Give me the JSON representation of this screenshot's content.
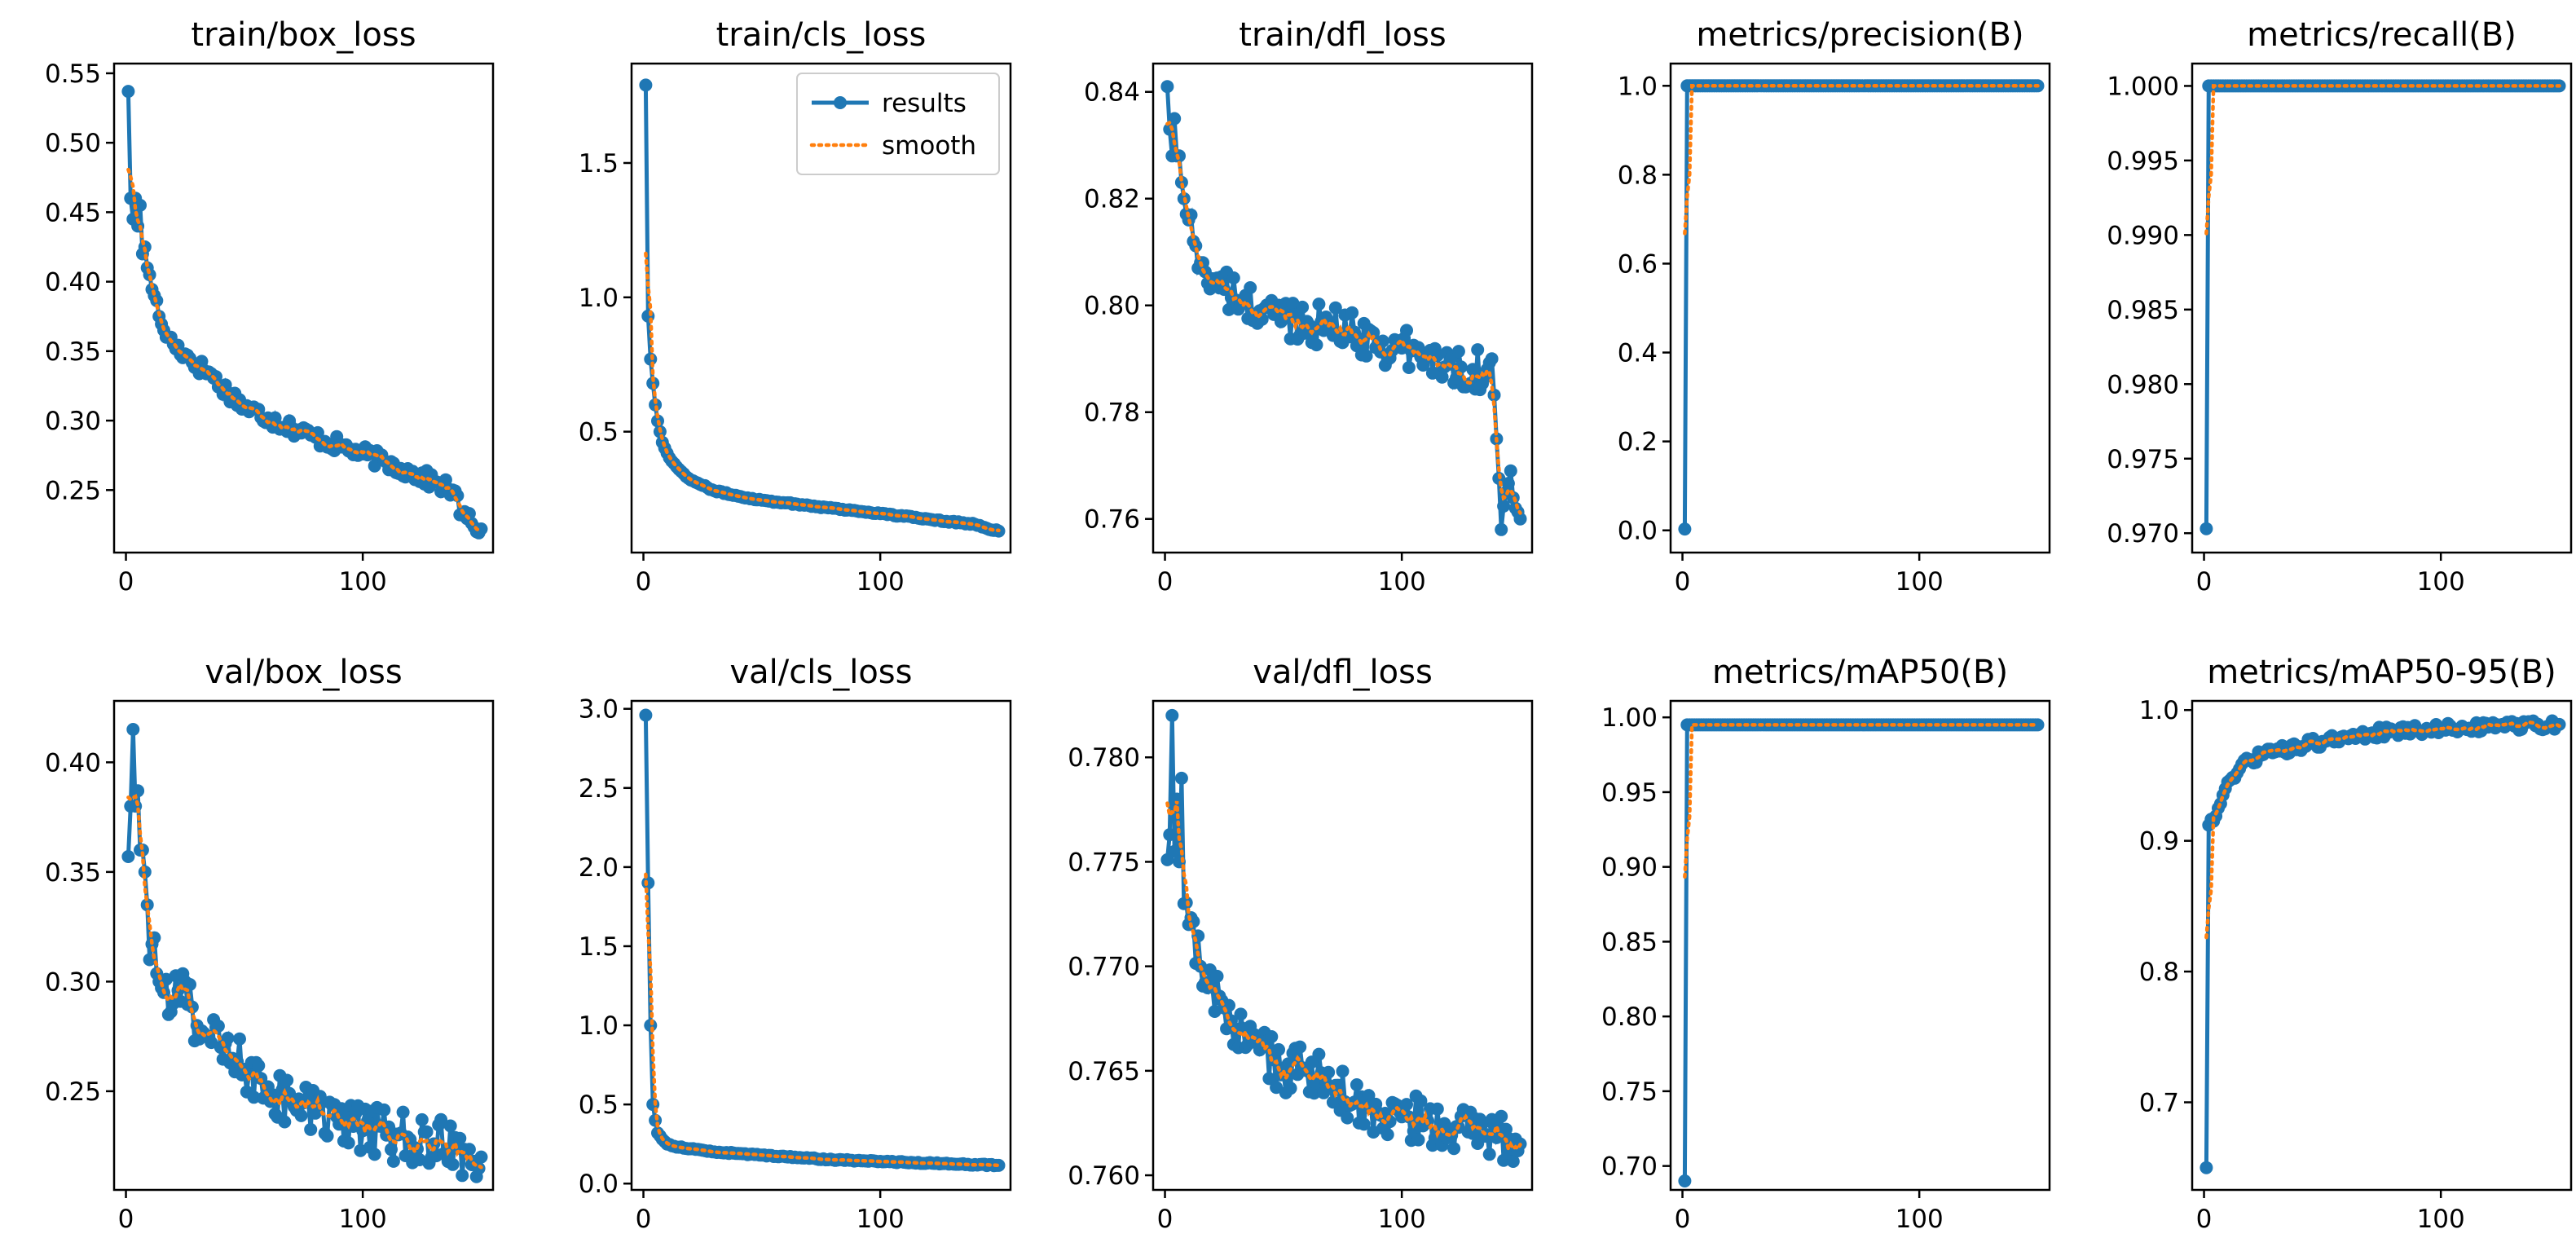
{
  "colors": {
    "results": "#1f77b4",
    "smooth": "#ff7f0e",
    "axes": "#000000",
    "background": "#ffffff"
  },
  "legend": {
    "results": "results",
    "smooth": "smooth",
    "location": "upper-right",
    "panel": "train/cls_loss"
  },
  "chart_data": [
    {
      "type": "line",
      "title": "train/box_loss",
      "xlim": [
        -5,
        155
      ],
      "ylim": [
        0.205,
        0.557
      ],
      "xticks": [
        0,
        100
      ],
      "xtick_labels": [
        "0",
        "100"
      ],
      "yticks": [
        0.25,
        0.3,
        0.35,
        0.4,
        0.45,
        0.5,
        0.55
      ],
      "ytick_labels": [
        "0.25",
        "0.30",
        "0.35",
        "0.40",
        "0.45",
        "0.50",
        "0.55"
      ],
      "anchors": [
        [
          1,
          0.537
        ],
        [
          2,
          0.46
        ],
        [
          3,
          0.445
        ],
        [
          4,
          0.46
        ],
        [
          5,
          0.44
        ],
        [
          6,
          0.455
        ],
        [
          7,
          0.42
        ],
        [
          8,
          0.425
        ],
        [
          9,
          0.41
        ],
        [
          10,
          0.405
        ],
        [
          12,
          0.39
        ],
        [
          14,
          0.375
        ],
        [
          16,
          0.365
        ],
        [
          18,
          0.36
        ],
        [
          20,
          0.355
        ],
        [
          25,
          0.348
        ],
        [
          30,
          0.34
        ],
        [
          35,
          0.335
        ],
        [
          40,
          0.325
        ],
        [
          45,
          0.318
        ],
        [
          50,
          0.31
        ],
        [
          60,
          0.302
        ],
        [
          70,
          0.295
        ],
        [
          80,
          0.288
        ],
        [
          90,
          0.282
        ],
        [
          100,
          0.276
        ],
        [
          110,
          0.27
        ],
        [
          120,
          0.263
        ],
        [
          130,
          0.256
        ],
        [
          138,
          0.25
        ],
        [
          142,
          0.232
        ],
        [
          146,
          0.226
        ],
        [
          150,
          0.222
        ]
      ],
      "noise": 0.006
    },
    {
      "type": "line",
      "title": "train/cls_loss",
      "xlim": [
        -5,
        155
      ],
      "ylim": [
        0.05,
        1.87
      ],
      "xticks": [
        0,
        100
      ],
      "xtick_labels": [
        "0",
        "100"
      ],
      "yticks": [
        0.5,
        1.0,
        1.5
      ],
      "ytick_labels": [
        "0.5",
        "1.0",
        "1.5"
      ],
      "anchors": [
        [
          1,
          1.79
        ],
        [
          2,
          0.93
        ],
        [
          3,
          0.77
        ],
        [
          4,
          0.68
        ],
        [
          5,
          0.6
        ],
        [
          6,
          0.54
        ],
        [
          7,
          0.5
        ],
        [
          8,
          0.46
        ],
        [
          10,
          0.42
        ],
        [
          12,
          0.39
        ],
        [
          15,
          0.36
        ],
        [
          20,
          0.32
        ],
        [
          25,
          0.3
        ],
        [
          30,
          0.28
        ],
        [
          40,
          0.26
        ],
        [
          50,
          0.245
        ],
        [
          60,
          0.235
        ],
        [
          70,
          0.225
        ],
        [
          80,
          0.215
        ],
        [
          90,
          0.205
        ],
        [
          100,
          0.195
        ],
        [
          110,
          0.185
        ],
        [
          120,
          0.175
        ],
        [
          130,
          0.165
        ],
        [
          140,
          0.155
        ],
        [
          145,
          0.14
        ],
        [
          150,
          0.13
        ]
      ],
      "noise": 0.003
    },
    {
      "type": "line",
      "title": "train/dfl_loss",
      "xlim": [
        -5,
        155
      ],
      "ylim": [
        0.7537,
        0.8453
      ],
      "xticks": [
        0,
        100
      ],
      "xtick_labels": [
        "0",
        "100"
      ],
      "yticks": [
        0.76,
        0.78,
        0.8,
        0.82,
        0.84
      ],
      "ytick_labels": [
        "0.76",
        "0.78",
        "0.80",
        "0.82",
        "0.84"
      ],
      "anchors": [
        [
          1,
          0.841
        ],
        [
          2,
          0.833
        ],
        [
          3,
          0.828
        ],
        [
          4,
          0.835
        ],
        [
          5,
          0.828
        ],
        [
          6,
          0.828
        ],
        [
          8,
          0.82
        ],
        [
          10,
          0.816
        ],
        [
          12,
          0.812
        ],
        [
          15,
          0.808
        ],
        [
          20,
          0.805
        ],
        [
          25,
          0.803
        ],
        [
          30,
          0.801
        ],
        [
          40,
          0.799
        ],
        [
          50,
          0.798
        ],
        [
          60,
          0.797
        ],
        [
          70,
          0.796
        ],
        [
          80,
          0.795
        ],
        [
          90,
          0.793
        ],
        [
          100,
          0.792
        ],
        [
          110,
          0.79
        ],
        [
          120,
          0.789
        ],
        [
          130,
          0.788
        ],
        [
          136,
          0.788
        ],
        [
          138,
          0.79
        ],
        [
          140,
          0.775
        ],
        [
          142,
          0.758
        ],
        [
          144,
          0.765
        ],
        [
          146,
          0.769
        ],
        [
          148,
          0.762
        ],
        [
          150,
          0.76
        ]
      ],
      "noise": 0.004
    },
    {
      "type": "line",
      "title": "metrics/precision(B)",
      "xlim": [
        -5,
        155
      ],
      "ylim": [
        -0.05,
        1.05
      ],
      "xticks": [
        0,
        100
      ],
      "xtick_labels": [
        "0",
        "100"
      ],
      "yticks": [
        0.0,
        0.2,
        0.4,
        0.6,
        0.8,
        1.0
      ],
      "ytick_labels": [
        "0.0",
        "0.2",
        "0.4",
        "0.6",
        "0.8",
        "1.0"
      ],
      "anchors": [
        [
          1,
          0.003
        ],
        [
          2,
          1.0
        ],
        [
          150,
          1.0
        ]
      ],
      "noise": 0
    },
    {
      "type": "line",
      "title": "metrics/recall(B)",
      "xlim": [
        -5,
        155
      ],
      "ylim": [
        0.9687,
        1.0015
      ],
      "xticks": [
        0,
        100
      ],
      "xtick_labels": [
        "0",
        "100"
      ],
      "yticks": [
        0.97,
        0.975,
        0.98,
        0.985,
        0.99,
        0.995,
        1.0
      ],
      "ytick_labels": [
        "0.970",
        "0.975",
        "0.980",
        "0.985",
        "0.990",
        "0.995",
        "1.000"
      ],
      "anchors": [
        [
          1,
          0.9703
        ],
        [
          2,
          1.0
        ],
        [
          150,
          1.0
        ]
      ],
      "noise": 0
    },
    {
      "type": "line",
      "title": "val/box_loss",
      "xlim": [
        -5,
        155
      ],
      "ylim": [
        0.205,
        0.428
      ],
      "xticks": [
        0,
        100
      ],
      "xtick_labels": [
        "0",
        "100"
      ],
      "yticks": [
        0.25,
        0.3,
        0.35,
        0.4
      ],
      "ytick_labels": [
        "0.25",
        "0.30",
        "0.35",
        "0.40"
      ],
      "anchors": [
        [
          1,
          0.357
        ],
        [
          2,
          0.38
        ],
        [
          3,
          0.415
        ],
        [
          4,
          0.38
        ],
        [
          5,
          0.387
        ],
        [
          6,
          0.36
        ],
        [
          7,
          0.36
        ],
        [
          8,
          0.35
        ],
        [
          9,
          0.335
        ],
        [
          10,
          0.31
        ],
        [
          12,
          0.32
        ],
        [
          14,
          0.3
        ],
        [
          16,
          0.295
        ],
        [
          18,
          0.285
        ],
        [
          20,
          0.29
        ],
        [
          25,
          0.3
        ],
        [
          30,
          0.28
        ],
        [
          35,
          0.275
        ],
        [
          40,
          0.27
        ],
        [
          45,
          0.265
        ],
        [
          50,
          0.26
        ],
        [
          60,
          0.252
        ],
        [
          70,
          0.245
        ],
        [
          80,
          0.24
        ],
        [
          90,
          0.235
        ],
        [
          100,
          0.232
        ],
        [
          110,
          0.23
        ],
        [
          120,
          0.228
        ],
        [
          130,
          0.226
        ],
        [
          140,
          0.224
        ],
        [
          150,
          0.22
        ]
      ],
      "noise": 0.012
    },
    {
      "type": "line",
      "title": "val/cls_loss",
      "xlim": [
        -5,
        155
      ],
      "ylim": [
        -0.04,
        3.05
      ],
      "xticks": [
        0,
        100
      ],
      "xtick_labels": [
        "0",
        "100"
      ],
      "yticks": [
        0.0,
        0.5,
        1.0,
        1.5,
        2.0,
        2.5,
        3.0
      ],
      "ytick_labels": [
        "0.0",
        "0.5",
        "1.0",
        "1.5",
        "2.0",
        "2.5",
        "3.0"
      ],
      "anchors": [
        [
          1,
          2.96
        ],
        [
          2,
          1.9
        ],
        [
          3,
          1.0
        ],
        [
          4,
          0.5
        ],
        [
          5,
          0.4
        ],
        [
          6,
          0.32
        ],
        [
          8,
          0.28
        ],
        [
          10,
          0.25
        ],
        [
          15,
          0.23
        ],
        [
          20,
          0.22
        ],
        [
          30,
          0.2
        ],
        [
          40,
          0.19
        ],
        [
          50,
          0.18
        ],
        [
          60,
          0.17
        ],
        [
          70,
          0.16
        ],
        [
          80,
          0.15
        ],
        [
          90,
          0.145
        ],
        [
          100,
          0.14
        ],
        [
          110,
          0.135
        ],
        [
          120,
          0.13
        ],
        [
          130,
          0.125
        ],
        [
          140,
          0.12
        ],
        [
          150,
          0.115
        ]
      ],
      "noise": 0.004
    },
    {
      "type": "line",
      "title": "val/dfl_loss",
      "xlim": [
        -5,
        155
      ],
      "ylim": [
        0.7593,
        0.7827
      ],
      "xticks": [
        0,
        100
      ],
      "xtick_labels": [
        "0",
        "100"
      ],
      "yticks": [
        0.76,
        0.765,
        0.77,
        0.775,
        0.78
      ],
      "ytick_labels": [
        "0.760",
        "0.765",
        "0.770",
        "0.775",
        "0.780"
      ],
      "anchors": [
        [
          1,
          0.7751
        ],
        [
          2,
          0.7763
        ],
        [
          3,
          0.782
        ],
        [
          4,
          0.7755
        ],
        [
          5,
          0.778
        ],
        [
          6,
          0.775
        ],
        [
          7,
          0.779
        ],
        [
          8,
          0.773
        ],
        [
          10,
          0.772
        ],
        [
          15,
          0.77
        ],
        [
          20,
          0.769
        ],
        [
          25,
          0.768
        ],
        [
          30,
          0.767
        ],
        [
          40,
          0.766
        ],
        [
          50,
          0.765
        ],
        [
          60,
          0.765
        ],
        [
          70,
          0.7642
        ],
        [
          80,
          0.7635
        ],
        [
          90,
          0.763
        ],
        [
          100,
          0.7628
        ],
        [
          110,
          0.7625
        ],
        [
          120,
          0.7622
        ],
        [
          130,
          0.762
        ],
        [
          140,
          0.7618
        ],
        [
          150,
          0.7615
        ]
      ],
      "noise": 0.0012
    },
    {
      "type": "line",
      "title": "metrics/mAP50(B)",
      "xlim": [
        -5,
        155
      ],
      "ylim": [
        0.684,
        1.011
      ],
      "xticks": [
        0,
        100
      ],
      "xtick_labels": [
        "0",
        "100"
      ],
      "yticks": [
        0.7,
        0.75,
        0.8,
        0.85,
        0.9,
        0.95,
        1.0
      ],
      "ytick_labels": [
        "0.70",
        "0.75",
        "0.80",
        "0.85",
        "0.90",
        "0.95",
        "1.00"
      ],
      "anchors": [
        [
          1,
          0.69
        ],
        [
          2,
          0.995
        ],
        [
          150,
          0.995
        ]
      ],
      "noise": 0
    },
    {
      "type": "line",
      "title": "metrics/mAP50-95(B)",
      "xlim": [
        -5,
        155
      ],
      "ylim": [
        0.633,
        1.007
      ],
      "xticks": [
        0,
        100
      ],
      "xtick_labels": [
        "0",
        "100"
      ],
      "yticks": [
        0.7,
        0.8,
        0.9,
        1.0
      ],
      "ytick_labels": [
        "0.7",
        "0.8",
        "0.9",
        "1.0"
      ],
      "anchors": [
        [
          1,
          0.65
        ],
        [
          2,
          0.912
        ],
        [
          4,
          0.915
        ],
        [
          6,
          0.925
        ],
        [
          8,
          0.935
        ],
        [
          10,
          0.945
        ],
        [
          15,
          0.955
        ],
        [
          20,
          0.962
        ],
        [
          25,
          0.966
        ],
        [
          30,
          0.968
        ],
        [
          40,
          0.972
        ],
        [
          50,
          0.976
        ],
        [
          60,
          0.979
        ],
        [
          70,
          0.982
        ],
        [
          80,
          0.984
        ],
        [
          90,
          0.985
        ],
        [
          100,
          0.986
        ],
        [
          120,
          0.987
        ],
        [
          140,
          0.988
        ],
        [
          150,
          0.989
        ]
      ],
      "noise": 0.004
    }
  ]
}
